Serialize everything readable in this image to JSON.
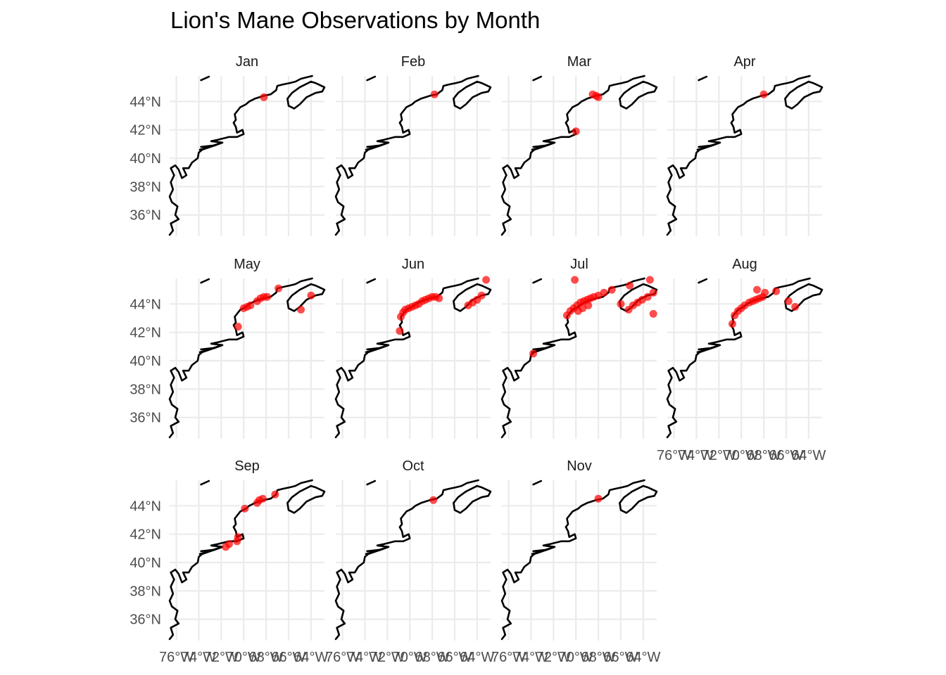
{
  "title": "Lion's Mane Observations by Month",
  "colors": {
    "point": "#ff0000",
    "coastline": "#000000",
    "grid": "#ebebeb",
    "background": "#ffffff"
  },
  "chart_data": {
    "type": "scatter",
    "subtype": "faceted map",
    "title": "Lion's Mane Observations by Month",
    "xlim": [
      -76.6,
      -62.8
    ],
    "ylim": [
      34.5,
      45.8
    ],
    "x_ticks": [
      -76,
      -74,
      -72,
      -70,
      -68,
      -66,
      -64
    ],
    "y_ticks": [
      36,
      38,
      40,
      42,
      44
    ],
    "x_tick_labels": [
      "76°W",
      "74°W",
      "72°W",
      "70°W",
      "68°W",
      "66°W",
      "64°W"
    ],
    "y_tick_labels": [
      "36°N",
      "38°N",
      "40°N",
      "42°N",
      "44°N"
    ],
    "grid": true,
    "legend": "none",
    "facets": [
      {
        "month": "Jan",
        "points": [
          [
            -68.2,
            44.3
          ]
        ]
      },
      {
        "month": "Feb",
        "points": [
          [
            -67.8,
            44.5
          ]
        ]
      },
      {
        "month": "Mar",
        "points": [
          [
            -70.0,
            41.9
          ],
          [
            -68.5,
            44.5
          ],
          [
            -68.2,
            44.4
          ],
          [
            -68.0,
            44.3
          ]
        ]
      },
      {
        "month": "Apr",
        "points": [
          [
            -68.0,
            44.5
          ]
        ]
      },
      {
        "month": "May",
        "points": [
          [
            -70.5,
            42.4
          ],
          [
            -70.0,
            43.7
          ],
          [
            -69.7,
            43.8
          ],
          [
            -69.4,
            43.9
          ],
          [
            -68.8,
            44.2
          ],
          [
            -68.5,
            44.4
          ],
          [
            -68.2,
            44.5
          ],
          [
            -67.9,
            44.5
          ],
          [
            -66.9,
            45.1
          ],
          [
            -64.9,
            43.6
          ],
          [
            -64.0,
            44.6
          ]
        ]
      },
      {
        "month": "Jun",
        "points": [
          [
            -70.9,
            42.1
          ],
          [
            -70.8,
            43.1
          ],
          [
            -70.6,
            43.4
          ],
          [
            -70.4,
            43.6
          ],
          [
            -70.1,
            43.7
          ],
          [
            -69.8,
            43.8
          ],
          [
            -69.5,
            43.9
          ],
          [
            -69.2,
            44.0
          ],
          [
            -68.9,
            44.2
          ],
          [
            -68.6,
            44.3
          ],
          [
            -68.3,
            44.4
          ],
          [
            -68.0,
            44.5
          ],
          [
            -67.7,
            44.5
          ],
          [
            -67.4,
            44.4
          ],
          [
            -64.8,
            43.9
          ],
          [
            -64.4,
            44.1
          ],
          [
            -64.0,
            44.3
          ],
          [
            -63.6,
            44.6
          ],
          [
            -63.2,
            45.7
          ]
        ]
      },
      {
        "month": "Jul",
        "points": [
          [
            -73.8,
            40.5
          ],
          [
            -70.8,
            43.2
          ],
          [
            -70.5,
            43.5
          ],
          [
            -70.2,
            43.7
          ],
          [
            -69.9,
            43.9
          ],
          [
            -69.6,
            44.1
          ],
          [
            -69.3,
            44.2
          ],
          [
            -69.0,
            44.3
          ],
          [
            -68.7,
            44.4
          ],
          [
            -68.4,
            44.5
          ],
          [
            -68.0,
            44.6
          ],
          [
            -69.8,
            43.5
          ],
          [
            -69.4,
            43.7
          ],
          [
            -68.9,
            43.9
          ],
          [
            -67.5,
            44.8
          ],
          [
            -66.8,
            45.0
          ],
          [
            -66.0,
            44.0
          ],
          [
            -65.3,
            43.6
          ],
          [
            -64.9,
            43.9
          ],
          [
            -64.5,
            44.1
          ],
          [
            -64.1,
            44.3
          ],
          [
            -63.6,
            44.5
          ],
          [
            -63.1,
            44.8
          ],
          [
            -65.2,
            45.3
          ],
          [
            -63.1,
            43.3
          ],
          [
            -63.4,
            45.7
          ],
          [
            -70.1,
            45.7
          ]
        ]
      },
      {
        "month": "Aug",
        "points": [
          [
            -70.8,
            42.6
          ],
          [
            -70.6,
            43.2
          ],
          [
            -70.3,
            43.5
          ],
          [
            -70.0,
            43.7
          ],
          [
            -69.7,
            43.9
          ],
          [
            -69.3,
            44.1
          ],
          [
            -69.0,
            44.2
          ],
          [
            -68.7,
            44.3
          ],
          [
            -68.4,
            44.4
          ],
          [
            -68.1,
            44.5
          ],
          [
            -68.6,
            45.0
          ],
          [
            -67.9,
            44.8
          ],
          [
            -66.9,
            44.9
          ],
          [
            -65.8,
            44.2
          ],
          [
            -65.2,
            43.8
          ]
        ]
      },
      {
        "month": "Sep",
        "points": [
          [
            -71.6,
            41.1
          ],
          [
            -71.3,
            41.3
          ],
          [
            -70.6,
            41.5
          ],
          [
            -70.5,
            41.8
          ],
          [
            -69.9,
            43.8
          ],
          [
            -68.8,
            44.2
          ],
          [
            -68.6,
            44.4
          ],
          [
            -68.3,
            44.5
          ],
          [
            -67.2,
            44.8
          ]
        ]
      },
      {
        "month": "Oct",
        "points": [
          [
            -67.9,
            44.4
          ]
        ]
      },
      {
        "month": "Nov",
        "points": [
          [
            -68.0,
            44.5
          ]
        ]
      }
    ]
  }
}
